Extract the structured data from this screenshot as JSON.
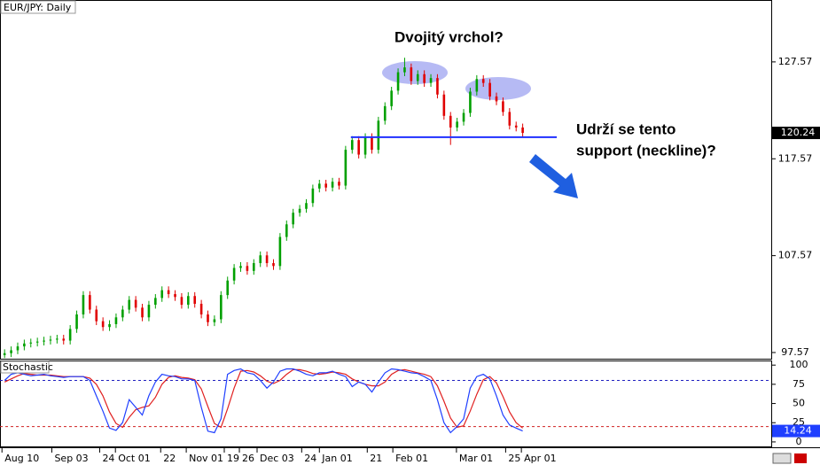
{
  "chart_data": {
    "type": "candlestick",
    "title": "EUR/JPY: Daily",
    "ylim": [
      96.93,
      133.96
    ],
    "yticks": [
      97.57,
      107.57,
      117.57,
      127.57
    ],
    "xlim": [
      -0.7,
      116.9
    ],
    "xticks": [
      {
        "value": -0.4,
        "label": "Aug 10"
      },
      {
        "value": 7.2,
        "label": "Sep 03"
      },
      {
        "value": 14.5,
        "label": "24"
      },
      {
        "value": 16.9,
        "label": "Oct 01"
      },
      {
        "value": 23.8,
        "label": "22"
      },
      {
        "value": 27.7,
        "label": "Nov 01"
      },
      {
        "value": 33.5,
        "label": "19"
      },
      {
        "value": 35.8,
        "label": "26"
      },
      {
        "value": 38.5,
        "label": "Dec 03"
      },
      {
        "value": 45.3,
        "label": "24"
      },
      {
        "value": 48,
        "label": "Jan 01"
      },
      {
        "value": 55.3,
        "label": "21"
      },
      {
        "value": 59.2,
        "label": "Feb 01"
      },
      {
        "value": 68.9,
        "label": "Mar 01"
      },
      {
        "value": 76.4,
        "label": "25"
      },
      {
        "value": 78.8,
        "label": "Apr 01"
      }
    ],
    "up_color": "#00a000",
    "down_color": "#e00000",
    "candles": {
      "open": [
        97.3,
        97.5,
        97.8,
        98.2,
        98.5,
        98.6,
        98.7,
        98.8,
        98.9,
        99.0,
        98.8,
        100.0,
        101.5,
        103.5,
        102.0,
        100.8,
        100.2,
        100.5,
        101.2,
        102.0,
        103.0,
        102.2,
        101.2,
        102.5,
        103.2,
        104.0,
        103.6,
        103.3,
        102.5,
        103.4,
        102.6,
        101.5,
        100.7,
        101.0,
        103.5,
        105.0,
        106.3,
        106.5,
        106.0,
        106.8,
        107.6,
        106.8,
        106.5,
        109.5,
        110.8,
        112.0,
        112.4,
        113.0,
        114.5,
        115.0,
        114.6,
        115.2,
        114.8,
        118.5,
        119.5,
        118.0,
        119.8,
        118.5,
        121.5,
        123.0,
        124.6,
        126.5,
        127.0,
        125.6,
        126.3,
        125.4,
        125.9,
        124.2,
        122.0,
        120.8,
        121.4,
        122.3,
        124.5,
        125.8,
        125.4,
        124.0,
        123.5,
        122.4,
        121.0,
        120.8
      ],
      "high": [
        97.9,
        98.2,
        98.6,
        98.9,
        99.0,
        99.1,
        99.2,
        99.3,
        99.4,
        99.4,
        100.4,
        101.9,
        103.9,
        103.9,
        102.4,
        101.2,
        100.9,
        101.6,
        102.4,
        103.4,
        103.4,
        102.6,
        102.9,
        103.6,
        104.4,
        104.4,
        104.0,
        103.7,
        103.8,
        103.8,
        103.0,
        101.9,
        101.4,
        103.9,
        105.4,
        106.7,
        106.9,
        106.9,
        107.2,
        108.0,
        108.0,
        107.2,
        109.9,
        111.2,
        112.4,
        112.8,
        113.4,
        114.9,
        115.4,
        115.4,
        115.6,
        115.6,
        118.9,
        119.9,
        119.9,
        120.2,
        120.2,
        121.9,
        123.4,
        125.0,
        126.9,
        128.0,
        127.4,
        126.7,
        126.7,
        126.3,
        126.3,
        124.6,
        122.4,
        121.8,
        122.7,
        124.9,
        126.2,
        126.2,
        125.8,
        124.4,
        123.9,
        122.8,
        121.4,
        121.2
      ],
      "low": [
        97.0,
        97.1,
        97.4,
        97.8,
        98.1,
        98.2,
        98.3,
        98.4,
        98.5,
        98.4,
        98.4,
        99.6,
        101.1,
        101.6,
        100.4,
        99.8,
        99.8,
        100.1,
        100.8,
        101.6,
        101.8,
        100.8,
        100.8,
        102.1,
        102.8,
        103.2,
        102.9,
        102.1,
        102.1,
        102.2,
        101.1,
        100.3,
        100.3,
        100.6,
        103.1,
        104.6,
        105.9,
        105.6,
        105.6,
        106.4,
        106.4,
        106.1,
        106.1,
        109.1,
        110.4,
        111.6,
        112.0,
        112.6,
        114.1,
        114.2,
        114.2,
        114.4,
        114.4,
        118.1,
        117.6,
        117.6,
        118.1,
        118.1,
        121.1,
        122.6,
        124.2,
        126.1,
        125.2,
        125.2,
        125.0,
        125.0,
        123.8,
        121.6,
        119.0,
        120.4,
        121.0,
        121.9,
        124.1,
        125.0,
        123.6,
        123.1,
        122.0,
        120.6,
        120.4,
        119.84
      ],
      "close": [
        97.5,
        97.8,
        98.2,
        98.5,
        98.6,
        98.7,
        98.8,
        98.9,
        99.0,
        98.8,
        100.0,
        101.5,
        103.5,
        102.0,
        100.8,
        100.2,
        100.5,
        101.2,
        102.0,
        103.0,
        102.2,
        101.2,
        102.5,
        103.2,
        104.0,
        103.6,
        103.3,
        102.5,
        103.4,
        102.6,
        101.5,
        100.7,
        101.0,
        103.5,
        105.0,
        106.3,
        106.5,
        106.0,
        106.8,
        107.6,
        106.8,
        106.5,
        109.5,
        110.8,
        112.0,
        112.4,
        113.0,
        114.5,
        115.0,
        114.6,
        115.2,
        114.8,
        118.5,
        119.5,
        118.0,
        119.8,
        118.5,
        121.5,
        123.0,
        124.6,
        126.5,
        127.0,
        125.6,
        126.3,
        125.4,
        125.9,
        124.2,
        122.0,
        120.8,
        121.4,
        122.3,
        124.5,
        125.8,
        125.4,
        124.0,
        123.5,
        122.4,
        121.0,
        120.8,
        120.24
      ]
    },
    "neckline": 119.8,
    "neckline_color": "#2030ff",
    "annotations": [
      "Dvojitý vrchol?",
      "Udrží se tento",
      "support (neckline)?"
    ],
    "stochastic": {
      "title": "Stochastic",
      "ylim": [
        -7,
        106
      ],
      "yticks": [
        0,
        25,
        50,
        75,
        100
      ],
      "levels": [
        {
          "value": 80,
          "color": "#2020c0"
        },
        {
          "value": 20,
          "color": "#d02020"
        }
      ],
      "k_color": "#1f3fff",
      "d_color": "#e02020",
      "k": [
        80,
        88,
        90,
        88,
        86,
        87,
        88,
        86,
        85,
        84,
        85,
        85,
        85,
        80,
        60,
        40,
        18,
        15,
        25,
        55,
        45,
        35,
        60,
        78,
        88,
        86,
        85,
        82,
        82,
        80,
        45,
        14,
        12,
        30,
        88,
        93,
        95,
        90,
        88,
        80,
        70,
        78,
        92,
        95,
        95,
        92,
        88,
        86,
        90,
        90,
        92,
        88,
        85,
        72,
        78,
        75,
        65,
        78,
        90,
        95,
        94,
        92,
        90,
        89,
        85,
        80,
        55,
        25,
        12,
        20,
        30,
        70,
        85,
        88,
        82,
        60,
        35,
        22,
        18,
        14.24
      ],
      "d": [
        78,
        82,
        86,
        89,
        88,
        87,
        87,
        87,
        86,
        85,
        85,
        85,
        85,
        83,
        75,
        60,
        39,
        24,
        19,
        32,
        42,
        45,
        47,
        58,
        75,
        84,
        86,
        84,
        83,
        81,
        69,
        46,
        24,
        19,
        43,
        70,
        92,
        93,
        91,
        86,
        79,
        76,
        80,
        88,
        94,
        94,
        92,
        89,
        88,
        89,
        91,
        90,
        88,
        82,
        78,
        75,
        73,
        73,
        78,
        88,
        93,
        94,
        92,
        90,
        88,
        85,
        73,
        53,
        31,
        19,
        21,
        40,
        62,
        81,
        85,
        77,
        59,
        39,
        25,
        18
      ]
    }
  }
}
